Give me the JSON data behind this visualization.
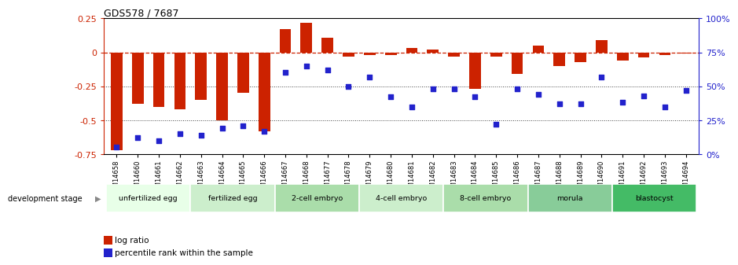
{
  "title": "GDS578 / 7687",
  "samples": [
    "GSM14658",
    "GSM14660",
    "GSM14661",
    "GSM14662",
    "GSM14663",
    "GSM14664",
    "GSM14665",
    "GSM14666",
    "GSM14667",
    "GSM14668",
    "GSM14677",
    "GSM14678",
    "GSM14679",
    "GSM14680",
    "GSM14681",
    "GSM14682",
    "GSM14683",
    "GSM14684",
    "GSM14685",
    "GSM14686",
    "GSM14687",
    "GSM14688",
    "GSM14689",
    "GSM14690",
    "GSM14691",
    "GSM14692",
    "GSM14693",
    "GSM14694"
  ],
  "log_ratio": [
    -0.72,
    -0.38,
    -0.4,
    -0.42,
    -0.35,
    -0.5,
    -0.3,
    -0.58,
    0.17,
    0.22,
    0.11,
    -0.03,
    -0.02,
    -0.02,
    0.03,
    0.02,
    -0.03,
    -0.27,
    -0.03,
    -0.16,
    0.05,
    -0.1,
    -0.07,
    0.09,
    -0.06,
    -0.04,
    -0.02,
    -0.01
  ],
  "percentile": [
    5,
    12,
    10,
    15,
    14,
    19,
    21,
    17,
    60,
    65,
    62,
    50,
    57,
    42,
    35,
    48,
    48,
    42,
    22,
    48,
    44,
    37,
    37,
    57,
    38,
    43,
    35,
    47
  ],
  "stages": [
    {
      "label": "unfertilized egg",
      "start": 0,
      "end": 4
    },
    {
      "label": "fertilized egg",
      "start": 4,
      "end": 8
    },
    {
      "label": "2-cell embryo",
      "start": 8,
      "end": 12
    },
    {
      "label": "4-cell embryo",
      "start": 12,
      "end": 16
    },
    {
      "label": "8-cell embryo",
      "start": 16,
      "end": 20
    },
    {
      "label": "morula",
      "start": 20,
      "end": 24
    },
    {
      "label": "blastocyst",
      "start": 24,
      "end": 28
    }
  ],
  "stage_colors": [
    "#e8ffe8",
    "#cceecc",
    "#aaddaa",
    "#cceecc",
    "#aaddaa",
    "#88cc99",
    "#44bb66"
  ],
  "bar_color": "#cc2200",
  "dot_color": "#2222cc",
  "ylim_left": [
    -0.75,
    0.25
  ],
  "ylim_right": [
    0,
    100
  ],
  "yticks_left": [
    -0.75,
    -0.5,
    -0.25,
    0.0,
    0.25
  ],
  "yticks_right": [
    0,
    25,
    50,
    75,
    100
  ],
  "background_color": "#ffffff"
}
